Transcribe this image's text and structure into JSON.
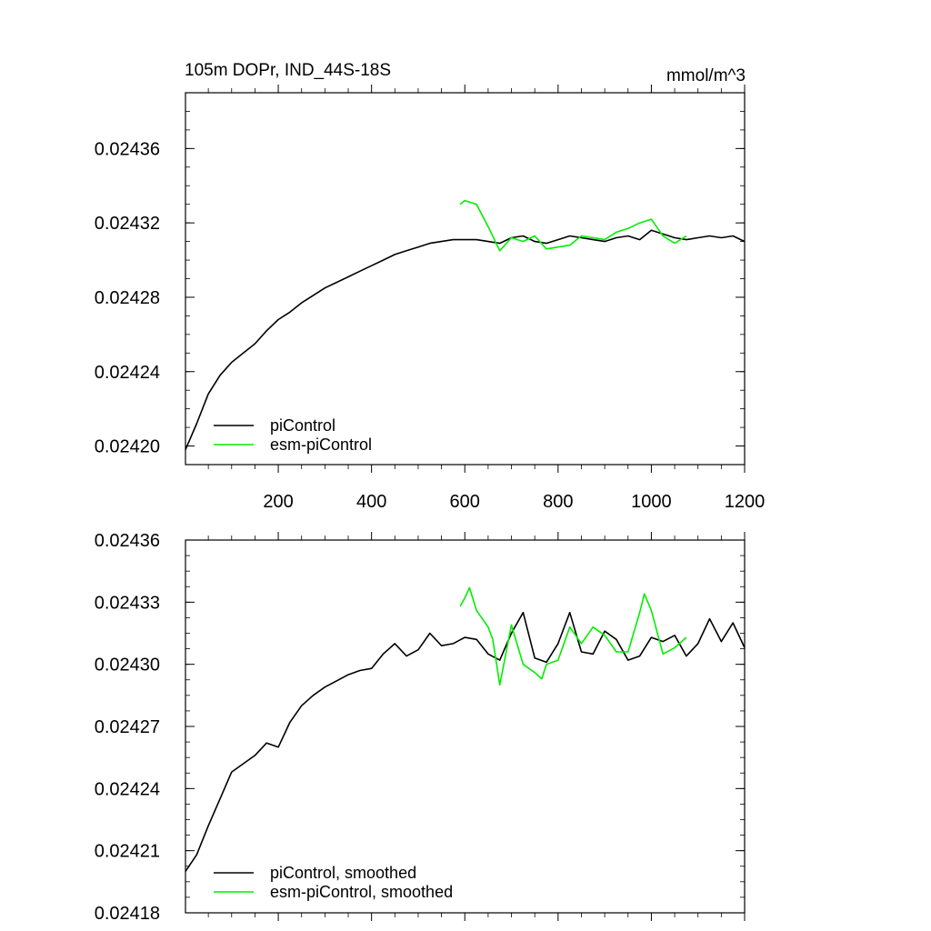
{
  "chart_data": [
    {
      "type": "line",
      "title": "105m DOPr, IND_44S-18S",
      "units": "mmol/m^3",
      "xlabel": "",
      "ylabel": "",
      "xlim": [
        1,
        1200
      ],
      "ylim": [
        0.2419,
        0.2439
      ],
      "y_axis_scale": 0.1,
      "xticks": [
        200,
        400,
        600,
        800,
        1000,
        1200
      ],
      "xtick_labels": [
        "200",
        "400",
        "600",
        "800",
        "1000",
        "1200"
      ],
      "yticks": [
        0.0242,
        0.02424,
        0.02428,
        0.02432,
        0.02436
      ],
      "ytick_labels": [
        "0.02420",
        "0.02424",
        "0.02428",
        "0.02432",
        "0.02436"
      ],
      "grid": false,
      "legend_position": "bottom-left",
      "series": [
        {
          "name": "piControl",
          "color": "#000000",
          "x": [
            1,
            25,
            50,
            75,
            100,
            125,
            150,
            175,
            200,
            225,
            250,
            275,
            300,
            325,
            350,
            375,
            400,
            425,
            450,
            475,
            500,
            525,
            550,
            575,
            600,
            625,
            650,
            675,
            700,
            725,
            750,
            775,
            800,
            825,
            850,
            875,
            900,
            925,
            950,
            975,
            1000,
            1025,
            1050,
            1075,
            1100,
            1125,
            1150,
            1175,
            1200
          ],
          "y": [
            0.024198,
            0.024212,
            0.024228,
            0.024238,
            0.024245,
            0.02425,
            0.024255,
            0.024262,
            0.024268,
            0.024272,
            0.024277,
            0.024281,
            0.024285,
            0.024288,
            0.024291,
            0.024294,
            0.024297,
            0.0243,
            0.024303,
            0.024305,
            0.024307,
            0.024309,
            0.02431,
            0.024311,
            0.024311,
            0.024311,
            0.02431,
            0.024309,
            0.024312,
            0.024313,
            0.02431,
            0.024309,
            0.024311,
            0.024313,
            0.024312,
            0.024311,
            0.02431,
            0.024312,
            0.024313,
            0.024311,
            0.024316,
            0.024314,
            0.024312,
            0.024311,
            0.024312,
            0.024313,
            0.024312,
            0.024313,
            0.02431
          ]
        },
        {
          "name": "esm-piControl",
          "color": "#00ee00",
          "x": [
            590,
            600,
            625,
            650,
            675,
            700,
            725,
            750,
            775,
            800,
            825,
            850,
            875,
            900,
            925,
            950,
            975,
            1000,
            1025,
            1050,
            1075
          ],
          "y": [
            0.02433,
            0.024332,
            0.02433,
            0.024318,
            0.024305,
            0.024312,
            0.02431,
            0.024313,
            0.024306,
            0.024307,
            0.024308,
            0.024313,
            0.024312,
            0.024311,
            0.024315,
            0.024317,
            0.02432,
            0.024322,
            0.024313,
            0.024309,
            0.024313
          ]
        }
      ]
    },
    {
      "type": "line",
      "title": "",
      "xlabel": "",
      "ylabel": "",
      "xlim": [
        1,
        1200
      ],
      "ylim": [
        0.02418,
        0.02436
      ],
      "yticks": [
        0.02418,
        0.02421,
        0.02424,
        0.02427,
        0.0243,
        0.02433,
        0.02436
      ],
      "ytick_labels": [
        "0.02418",
        "0.02421",
        "0.02424",
        "0.02427",
        "0.02430",
        "0.02433",
        "0.02436"
      ],
      "grid": false,
      "legend_position": "bottom-left",
      "series": [
        {
          "name": "piControl, smoothed",
          "color": "#000000",
          "x": [
            1,
            25,
            50,
            75,
            100,
            125,
            150,
            175,
            200,
            225,
            250,
            275,
            300,
            325,
            350,
            375,
            400,
            425,
            450,
            475,
            500,
            525,
            550,
            575,
            600,
            625,
            650,
            675,
            700,
            725,
            750,
            775,
            800,
            825,
            850,
            875,
            900,
            925,
            950,
            975,
            1000,
            1025,
            1050,
            1075,
            1100,
            1125,
            1150,
            1175,
            1200
          ],
          "y": [
            0.0242,
            0.024208,
            0.024222,
            0.024235,
            0.024248,
            0.024252,
            0.024256,
            0.024262,
            0.02426,
            0.024272,
            0.02428,
            0.024285,
            0.024289,
            0.024292,
            0.024295,
            0.024297,
            0.024298,
            0.024305,
            0.02431,
            0.024304,
            0.024307,
            0.024315,
            0.024309,
            0.02431,
            0.024313,
            0.024312,
            0.024305,
            0.024302,
            0.024315,
            0.024325,
            0.024303,
            0.024301,
            0.02431,
            0.024325,
            0.024306,
            0.024305,
            0.024316,
            0.024312,
            0.024302,
            0.024304,
            0.024313,
            0.024311,
            0.024314,
            0.024304,
            0.02431,
            0.024322,
            0.024311,
            0.02432,
            0.024308
          ]
        },
        {
          "name": "esm-piControl, smoothed",
          "color": "#00ee00",
          "x": [
            590,
            600,
            610,
            625,
            650,
            660,
            675,
            700,
            725,
            750,
            765,
            775,
            800,
            825,
            850,
            875,
            900,
            925,
            950,
            975,
            985,
            1000,
            1025,
            1050,
            1075
          ],
          "y": [
            0.024328,
            0.024332,
            0.024337,
            0.024326,
            0.024318,
            0.024312,
            0.02429,
            0.024319,
            0.0243,
            0.024296,
            0.024293,
            0.0243,
            0.024302,
            0.024318,
            0.02431,
            0.024318,
            0.024314,
            0.024306,
            0.024306,
            0.024325,
            0.024334,
            0.024326,
            0.024305,
            0.024308,
            0.024313
          ]
        }
      ]
    }
  ]
}
